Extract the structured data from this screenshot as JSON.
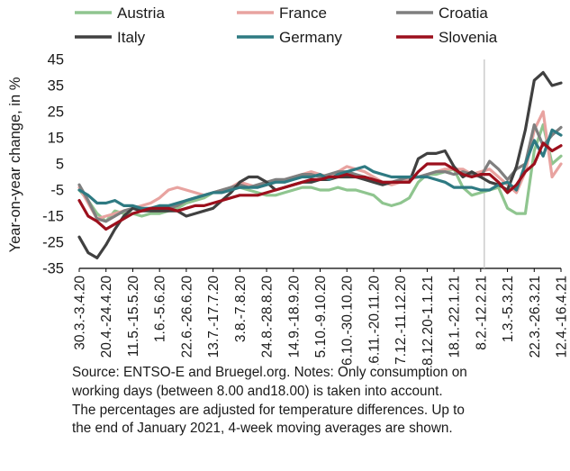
{
  "chart_data": {
    "type": "line",
    "ylabel": "Year-on-year change, in %",
    "ylim": [
      -35,
      45
    ],
    "yticks": [
      -35,
      -25,
      -15,
      -5,
      5,
      15,
      25,
      35,
      45
    ],
    "grid": "off",
    "legend_position": "top",
    "vline_label": "8.2.-12.2.21",
    "x_tick_labels": [
      "30.3.-3.4.20",
      "20.4.-24.4.20",
      "11.5.-15.5.20",
      "1.6.-5.6.20",
      "22.6.-26.6.20",
      "13.7.-17.7.20",
      "3.8.-7.8.20",
      "24.8.-28.8.20",
      "14.9.-18.9.20",
      "5.10.-9.10.20",
      "26.10.-30.10.20",
      "16.11.-20.11.20",
      "7.12.-11.12.20",
      "28.12.20-1.1.21",
      "18.1.-22.1.21",
      "8.2.-12.2.21",
      "1.3.-5.3.21",
      "22.3.-26.3.21",
      "12.4.-16.4.21"
    ],
    "x": [
      "30.3.-3.4.20",
      "6.4.-10.4.20",
      "13.4.-17.4.20",
      "20.4.-24.4.20",
      "27.4.-1.5.20",
      "4.5.-8.5.20",
      "11.5.-15.5.20",
      "18.5.-22.5.20",
      "25.5.-29.5.20",
      "1.6.-5.6.20",
      "8.6.-12.6.20",
      "15.6.-19.6.20",
      "22.6.-26.6.20",
      "29.6.-3.7.20",
      "6.7.-10.7.20",
      "13.7.-17.7.20",
      "20.7.-24.7.20",
      "27.7.-31.7.20",
      "3.8.-7.8.20",
      "10.8.-14.8.20",
      "17.8.-21.8.20",
      "24.8.-28.8.20",
      "31.8.-4.9.20",
      "7.9.-11.9.20",
      "14.9.-18.9.20",
      "21.9.-25.9.20",
      "28.9.-2.10.20",
      "5.10.-9.10.20",
      "12.10.-16.10.20",
      "19.10.-23.10.20",
      "26.10.-30.10.20",
      "2.11.-6.11.20",
      "9.11.-13.11.20",
      "16.11.-20.11.20",
      "23.11.-27.11.20",
      "30.11.-4.12.20",
      "7.12.-11.12.20",
      "14.12.-18.12.20",
      "21.12.-25.12.20",
      "28.12.20-1.1.21",
      "4.1.-8.1.21",
      "11.1.-15.1.21",
      "18.1.-22.1.21",
      "25.1.-29.1.21",
      "1.2.-5.2.21",
      "8.2.-12.2.21",
      "15.2.-19.2.21",
      "22.2.-26.2.21",
      "1.3.-5.3.21",
      "8.3.-12.3.21",
      "15.3.-19.3.21",
      "22.3.-26.3.21",
      "29.3.-2.4.21",
      "5.4.-9.4.21",
      "12.4.-16.4.21"
    ],
    "series": [
      {
        "name": "Austria",
        "color": "#8fc58f",
        "values": [
          -5,
          -9,
          -14,
          -17,
          -13,
          -14,
          -14,
          -15,
          -14,
          -14,
          -13,
          -12,
          -10,
          -9,
          -8,
          -6,
          -5,
          -4,
          -4,
          -5,
          -6,
          -7,
          -7,
          -6,
          -5,
          -4,
          -4,
          -5,
          -5,
          -4,
          -5,
          -5,
          -6,
          -7,
          -10,
          -11,
          -10,
          -8,
          -2,
          1,
          1,
          2,
          3,
          -4,
          -7,
          -6,
          -5,
          -4,
          -12,
          -14,
          -14,
          10,
          20,
          5,
          8
        ]
      },
      {
        "name": "France",
        "color": "#e8a3a0",
        "values": [
          -4,
          -10,
          -16,
          -15,
          -14,
          -13,
          -12,
          -11,
          -10,
          -8,
          -5,
          -4,
          -5,
          -6,
          -7,
          -6,
          -5,
          -4,
          -2,
          -3,
          -4,
          -3,
          -2,
          -1,
          0,
          1,
          2,
          1,
          0,
          2,
          4,
          3,
          2,
          0,
          -2,
          -3,
          -2,
          -1,
          0,
          1,
          2,
          3,
          3,
          3,
          1,
          2,
          3,
          0,
          -3,
          -6,
          2,
          18,
          25,
          0,
          5
        ]
      },
      {
        "name": "Croatia",
        "color": "#7f7f7f",
        "values": [
          -3,
          -9,
          -16,
          -17,
          -15,
          -13,
          -12,
          -12,
          -13,
          -13,
          -12,
          -11,
          -9,
          -8,
          -7,
          -6,
          -5,
          -4,
          -3,
          -4,
          -3,
          -2,
          -1,
          -1,
          0,
          1,
          1,
          0,
          1,
          2,
          2,
          1,
          0,
          -1,
          -2,
          -2,
          -1,
          0,
          0,
          1,
          2,
          2,
          1,
          2,
          1,
          0,
          6,
          3,
          -1,
          3,
          5,
          20,
          12,
          16,
          19
        ]
      },
      {
        "name": "Italy",
        "color": "#404040",
        "values": [
          -23,
          -29,
          -31,
          -26,
          -20,
          -15,
          -12,
          -13,
          -13,
          -13,
          -13,
          -13,
          -15,
          -14,
          -13,
          -12,
          -9,
          -6,
          -2,
          0,
          0,
          -2,
          -5,
          -4,
          -3,
          -2,
          -2,
          -1,
          -1,
          0,
          0,
          0,
          -1,
          -2,
          -3,
          -2,
          -2,
          -2,
          7,
          9,
          9,
          10,
          4,
          0,
          2,
          0,
          -2,
          -3,
          -5,
          4,
          18,
          37,
          40,
          35,
          36
        ]
      },
      {
        "name": "Germany",
        "color": "#2e7a82",
        "values": [
          -5,
          -7,
          -10,
          -10,
          -9,
          -11,
          -11,
          -12,
          -12,
          -11,
          -11,
          -10,
          -9,
          -8,
          -7,
          -6,
          -6,
          -5,
          -4,
          -4,
          -4,
          -3,
          -2,
          -2,
          -1,
          0,
          0,
          1,
          -1,
          1,
          2,
          3,
          4,
          2,
          1,
          0,
          0,
          0,
          0,
          0,
          -1,
          -2,
          -4,
          -4,
          -4,
          -5,
          -5,
          -3,
          -2,
          -5,
          5,
          14,
          8,
          18,
          16
        ]
      },
      {
        "name": "Slovenia",
        "color": "#9c0f1c",
        "values": [
          -9,
          -15,
          -17,
          -20,
          -18,
          -16,
          -14,
          -13,
          -12,
          -12,
          -12,
          -13,
          -12,
          -11,
          -11,
          -10,
          -9,
          -8,
          -7,
          -7,
          -7,
          -6,
          -5,
          -4,
          -3,
          -2,
          -1,
          -1,
          0,
          0,
          1,
          0,
          0,
          -1,
          -2,
          -2,
          -2,
          -2,
          2,
          5,
          5,
          5,
          3,
          1,
          0,
          1,
          1,
          -2,
          -6,
          -3,
          2,
          5,
          13,
          10,
          12
        ]
      }
    ]
  },
  "source_note": [
    "Source: ENTSO-E and Bruegel.org. Notes: Only consumption on",
    "working days (between 8.00 and18.00) is taken into account.",
    "The percentages are adjusted for temperature differences. Up to",
    "the end of January 2021, 4-week moving averages are shown."
  ]
}
